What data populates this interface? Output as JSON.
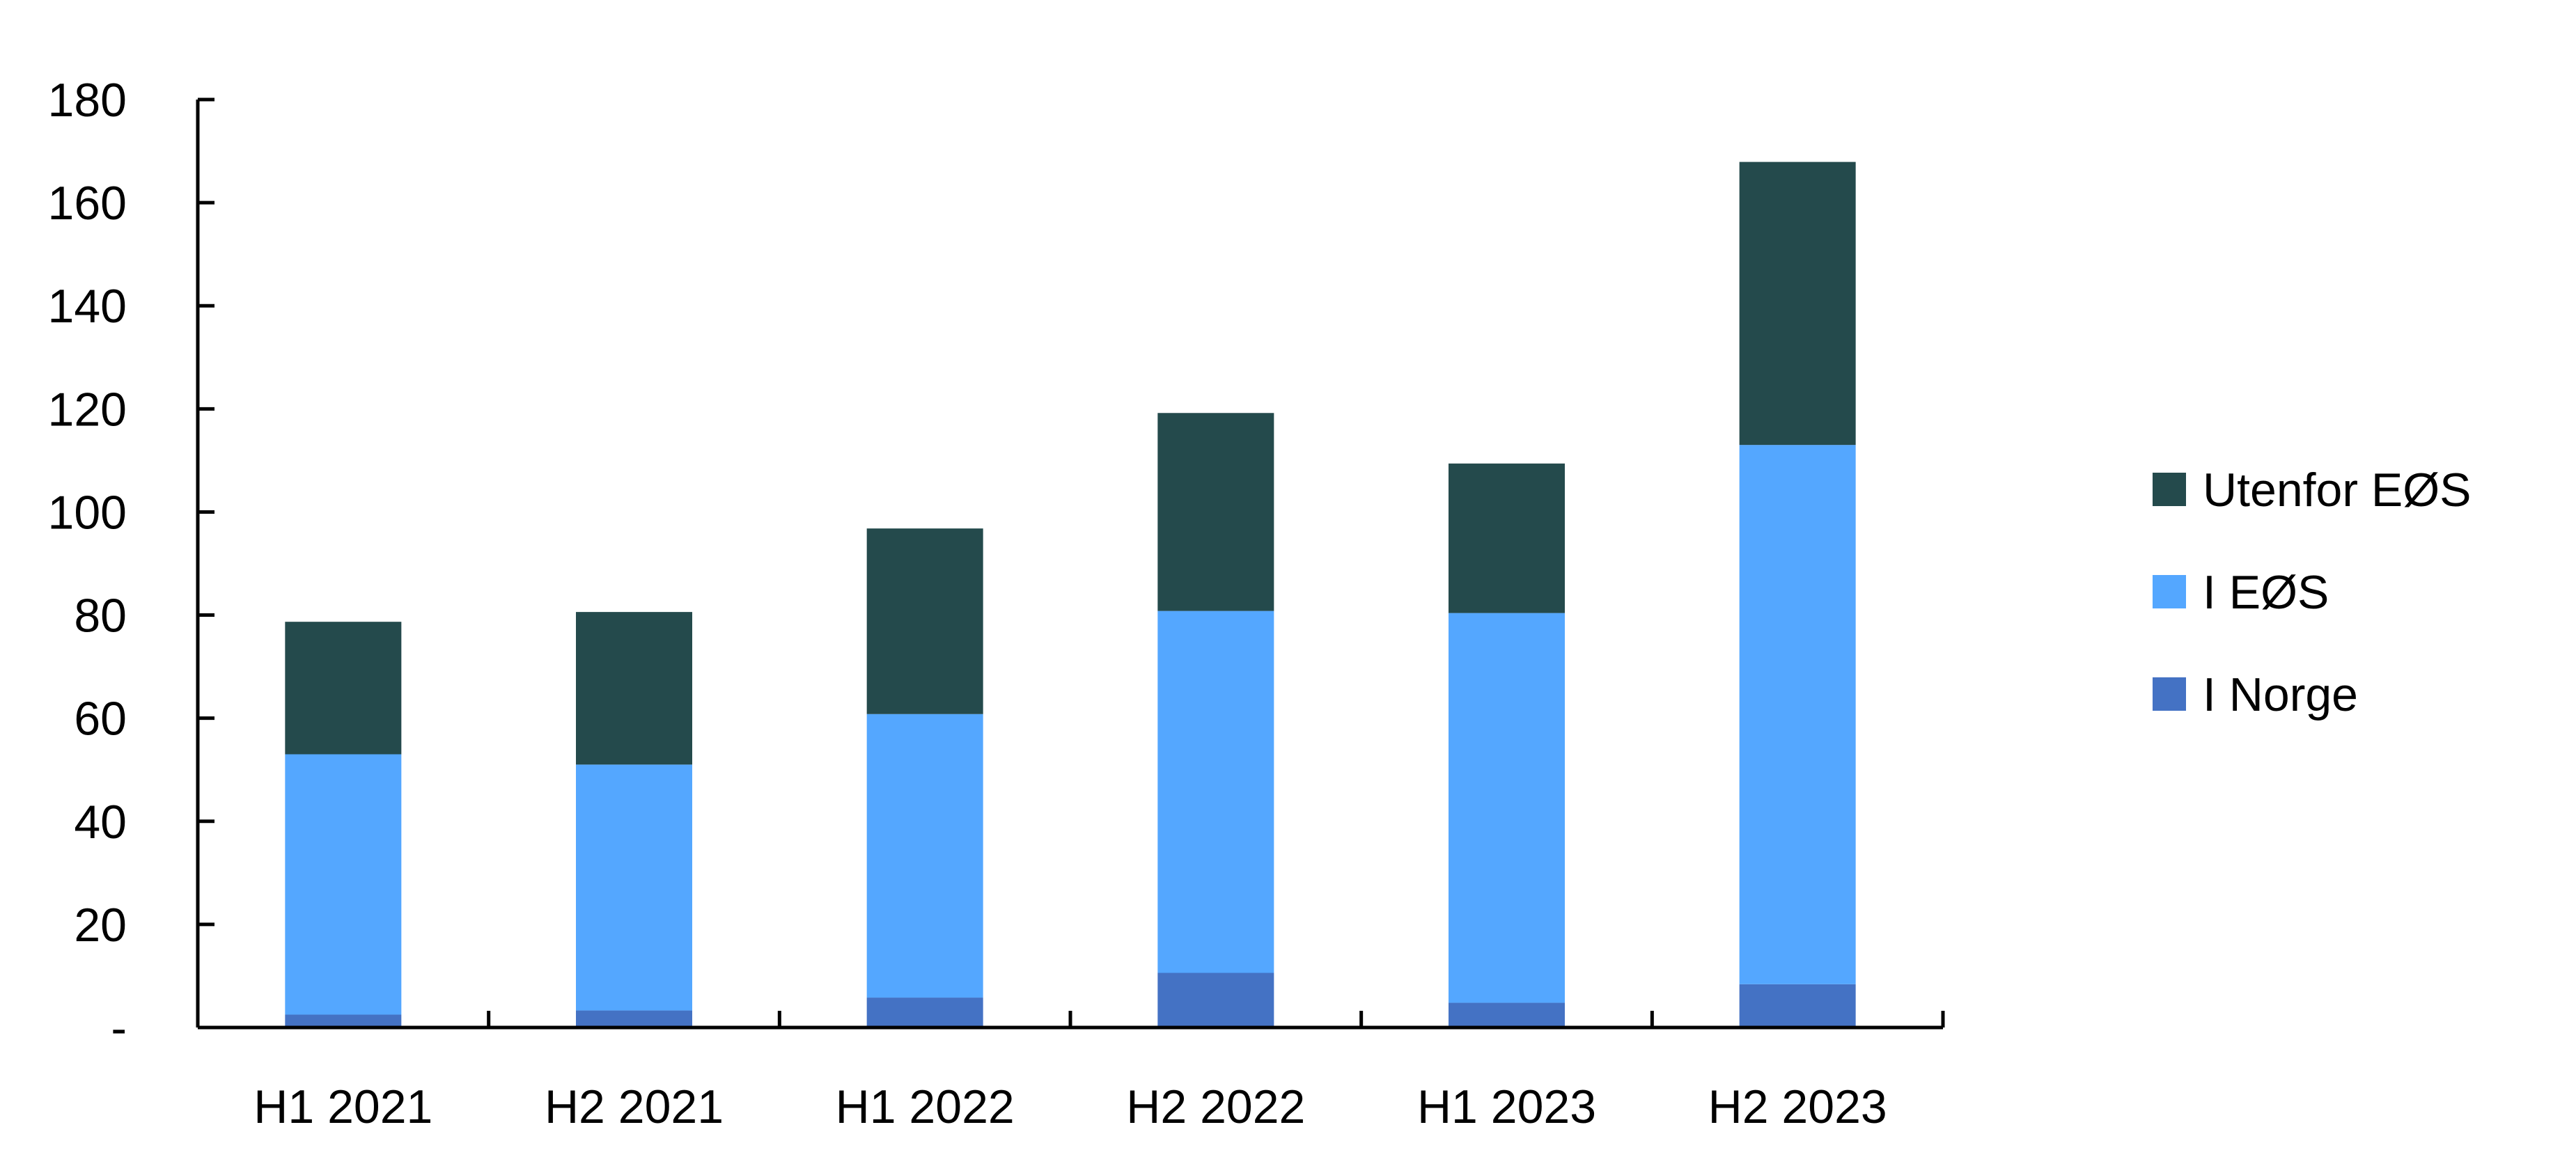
{
  "chart_data": {
    "type": "bar",
    "stacked": true,
    "categories": [
      "H1 2021",
      "H2 2021",
      "H1 2022",
      "H2 2022",
      "H1 2023",
      "H2 2023"
    ],
    "series": [
      {
        "name": "I Norge",
        "color": "#4472C4",
        "values": [
          2.5,
          3.3,
          5.8,
          10.6,
          4.8,
          8.4
        ]
      },
      {
        "name": "I EØS",
        "color": "#54A7FF",
        "values": [
          50.5,
          47.7,
          55.0,
          70.2,
          75.6,
          104.6
        ]
      },
      {
        "name": "Utenfor EØS",
        "color": "#244A4C",
        "values": [
          25.7,
          29.6,
          36.0,
          38.4,
          29.0,
          54.9
        ]
      }
    ],
    "y_ticks": [
      "-",
      "20",
      "40",
      "60",
      "80",
      "100",
      "120",
      "140",
      "160",
      "180"
    ],
    "ylim": [
      0,
      180
    ],
    "title": "",
    "xlabel": "",
    "ylabel": "",
    "grid": false,
    "legend_position": "right"
  }
}
